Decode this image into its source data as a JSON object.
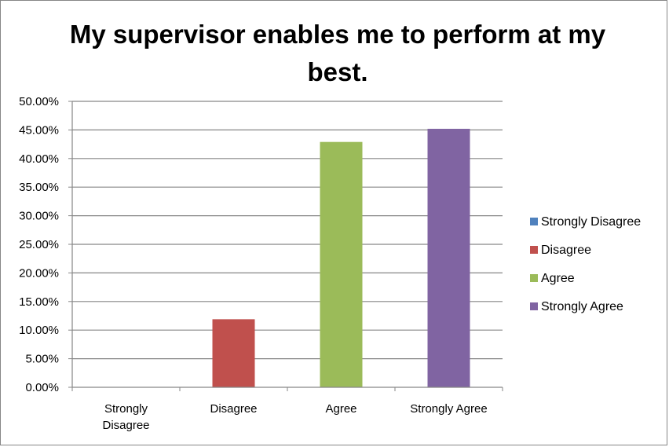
{
  "chart_data": {
    "type": "bar",
    "title": "My supervisor enables me to perform at my best.",
    "categories": [
      "Strongly Disagree",
      "Disagree",
      "Agree",
      "Strongly Agree"
    ],
    "values": [
      0.0,
      11.9,
      42.9,
      45.2
    ],
    "colors": [
      "#4f81bd",
      "#c0504d",
      "#9bbb59",
      "#8064a2"
    ],
    "ylim": [
      0,
      50
    ],
    "yticks": [
      "0.00%",
      "5.00%",
      "10.00%",
      "15.00%",
      "20.00%",
      "25.00%",
      "30.00%",
      "35.00%",
      "40.00%",
      "45.00%",
      "50.00%"
    ],
    "ytick_values": [
      0,
      5,
      10,
      15,
      20,
      25,
      30,
      35,
      40,
      45,
      50
    ],
    "grid": true,
    "legend": {
      "placement": "right",
      "entries": [
        "Strongly Disagree",
        "Disagree",
        "Agree",
        "Strongly Agree"
      ]
    }
  }
}
